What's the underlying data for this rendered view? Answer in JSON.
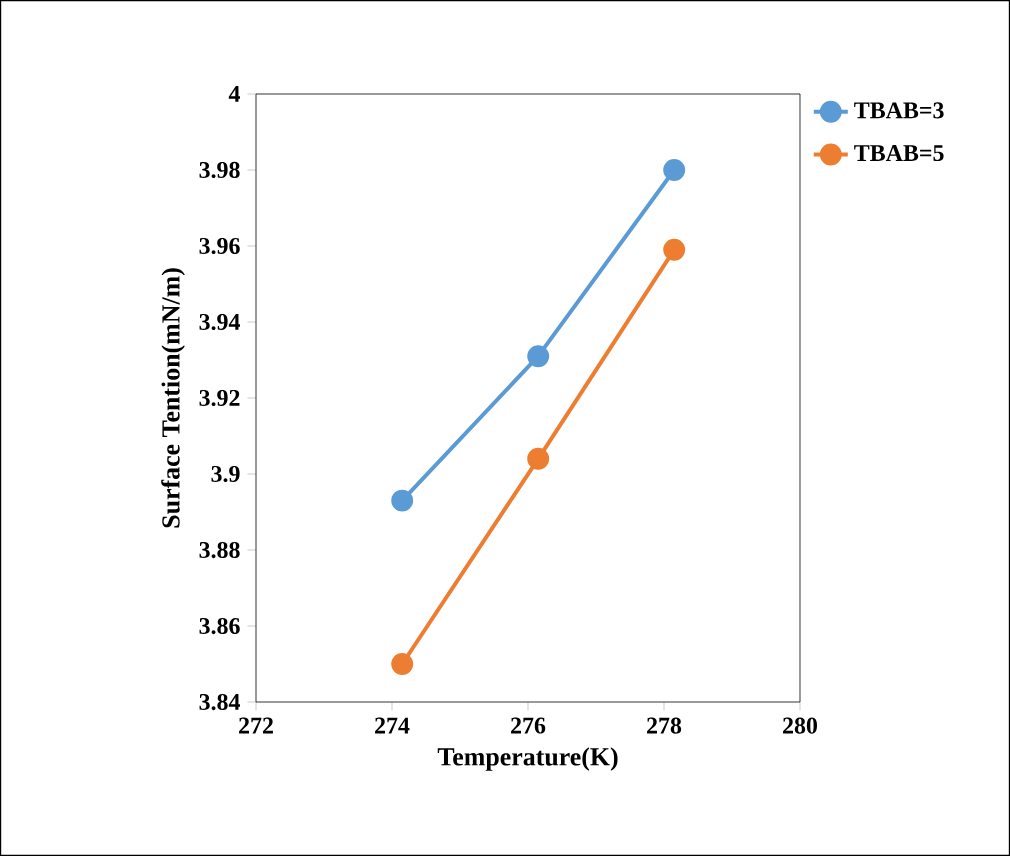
{
  "chart_data": {
    "type": "line",
    "xlabel": "Temperature(K)",
    "ylabel": "Surface Tention(mN/m)",
    "x": [
      274.15,
      276.15,
      278.15
    ],
    "series": [
      {
        "name": "TBAB=3",
        "color": "#5b9bd5",
        "values": [
          3.893,
          3.931,
          3.98
        ]
      },
      {
        "name": "TBAB=5",
        "color": "#ed7d31",
        "values": [
          3.85,
          3.904,
          3.959
        ]
      }
    ],
    "xlim": [
      272,
      280
    ],
    "ylim": [
      3.84,
      4
    ],
    "xticks": [
      272,
      274,
      276,
      278,
      280
    ],
    "yticks": [
      3.84,
      3.86,
      3.88,
      3.9,
      3.92,
      3.94,
      3.96,
      3.98,
      4
    ],
    "grid": false,
    "legend": "top right",
    "marker": "circle",
    "line_style": "solid"
  }
}
